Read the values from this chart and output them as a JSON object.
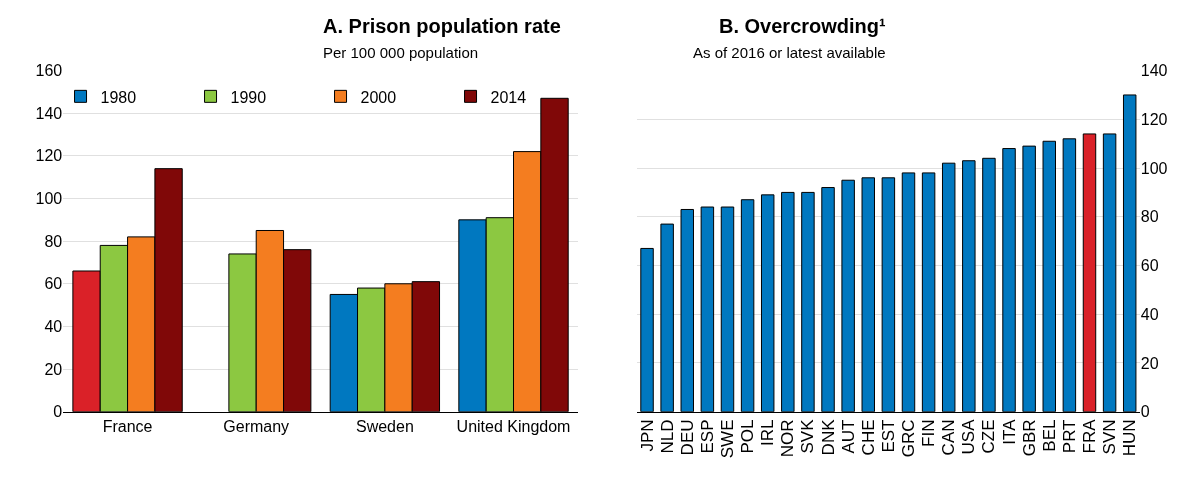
{
  "chart_data": [
    {
      "type": "bar",
      "title": "A. Prison population rate",
      "subtitle": "Per 100 000 population",
      "categories": [
        "France",
        "Germany",
        "Sweden",
        "United Kingdom"
      ],
      "ylim": [
        0,
        160
      ],
      "yticks": [
        0,
        20,
        40,
        60,
        80,
        100,
        120,
        140,
        160
      ],
      "grid": "y",
      "legend": "top",
      "series": [
        {
          "name": "1980",
          "color": "#0078c0",
          "colors": [
            "#da2128",
            "#0078c0",
            "#0078c0",
            "#0078c0"
          ],
          "values": [
            66,
            null,
            55,
            90
          ]
        },
        {
          "name": "1990",
          "color": "#8cc841",
          "values": [
            78,
            74,
            58,
            91
          ]
        },
        {
          "name": "2000",
          "color": "#f47d20",
          "values": [
            82,
            85,
            60,
            122
          ]
        },
        {
          "name": "2014",
          "color": "#800808",
          "values": [
            114,
            76,
            61,
            147
          ]
        }
      ]
    },
    {
      "type": "bar",
      "title": "B. Overcrowding¹",
      "subtitle": "As of 2016 or latest available",
      "categories": [
        "JPN",
        "NLD",
        "DEU",
        "ESP",
        "SWE",
        "POL",
        "IRL",
        "NOR",
        "SVK",
        "DNK",
        "AUT",
        "CHE",
        "EST",
        "GRC",
        "FIN",
        "CAN",
        "USA",
        "CZE",
        "ITA",
        "GBR",
        "BEL",
        "PRT",
        "FRA",
        "SVN",
        "HUN"
      ],
      "y2lim": [
        0,
        140
      ],
      "y2ticks": [
        0,
        20,
        40,
        60,
        80,
        100,
        120,
        140
      ],
      "grid": "y",
      "series": [
        {
          "axis": "y2",
          "color": "#0078c0",
          "colors": [
            "#0078c0",
            "#0078c0",
            "#0078c0",
            "#0078c0",
            "#0078c0",
            "#0078c0",
            "#0078c0",
            "#0078c0",
            "#0078c0",
            "#0078c0",
            "#0078c0",
            "#0078c0",
            "#0078c0",
            "#0078c0",
            "#0078c0",
            "#0078c0",
            "#0078c0",
            "#0078c0",
            "#0078c0",
            "#0078c0",
            "#0078c0",
            "#0078c0",
            "#da2128",
            "#0078c0",
            "#0078c0"
          ],
          "values": [
            67,
            77,
            83,
            84,
            84,
            87,
            89,
            90,
            90,
            92,
            95,
            96,
            96,
            98,
            98,
            102,
            103,
            104,
            108,
            109,
            111,
            112,
            114,
            114,
            130
          ]
        }
      ]
    }
  ]
}
